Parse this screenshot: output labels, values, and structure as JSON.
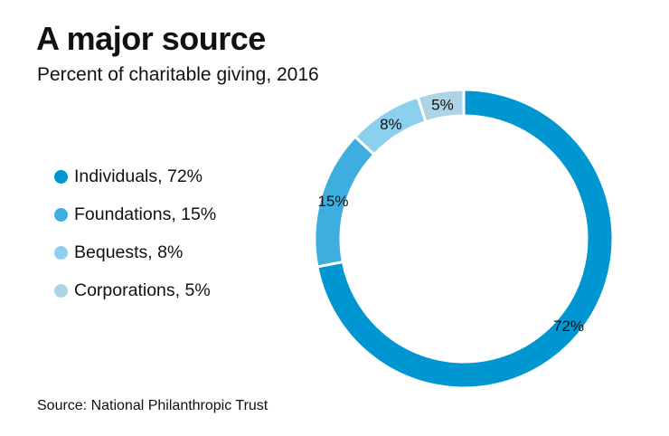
{
  "chart_data": {
    "type": "pie",
    "donut": true,
    "title": "A major source",
    "subtitle": "Percent of charitable giving, 2016",
    "source": "Source: National Philanthropic Trust",
    "legend_position": "left",
    "slices": [
      {
        "name": "Individuals",
        "value": 72,
        "label": "72%",
        "legend": "Individuals, 72%",
        "color": "#0096d2"
      },
      {
        "name": "Foundations",
        "value": 15,
        "label": "15%",
        "legend": "Foundations, 15%",
        "color": "#3eaedf"
      },
      {
        "name": "Bequests",
        "value": 8,
        "label": "8%",
        "legend": "Bequests, 8%",
        "color": "#8dcfee"
      },
      {
        "name": "Corporations",
        "value": 5,
        "label": "5%",
        "legend": "Corporations, 5%",
        "color": "#aed3e6"
      }
    ]
  }
}
